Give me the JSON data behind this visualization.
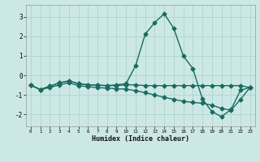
{
  "title": "",
  "xlabel": "Humidex (Indice chaleur)",
  "ylabel": "",
  "background_color": "#cce8e5",
  "grid_color": "#aacfcc",
  "line_color": "#1a6b60",
  "x_ticks": [
    0,
    1,
    2,
    3,
    4,
    5,
    6,
    7,
    8,
    9,
    10,
    11,
    12,
    13,
    14,
    15,
    16,
    17,
    18,
    19,
    20,
    21,
    22,
    23
  ],
  "xlim": [
    -0.5,
    23.5
  ],
  "ylim": [
    -2.6,
    3.6
  ],
  "yticks": [
    -2,
    -1,
    0,
    1,
    2,
    3
  ],
  "series": [
    {
      "x": [
        0,
        1,
        2,
        3,
        4,
        5,
        6,
        7,
        8,
        9,
        10,
        11,
        12,
        13,
        14,
        15,
        16,
        17,
        18,
        19,
        20,
        21,
        22,
        23
      ],
      "y": [
        -0.5,
        -0.72,
        -0.55,
        -0.38,
        -0.28,
        -0.42,
        -0.48,
        -0.5,
        -0.52,
        -0.48,
        -0.42,
        0.5,
        2.1,
        2.7,
        3.15,
        2.4,
        1.0,
        0.35,
        -1.2,
        -1.85,
        -2.1,
        -1.75,
        -0.75,
        -0.62
      ],
      "marker": "D",
      "marker_size": 2.5,
      "linewidth": 1.0
    },
    {
      "x": [
        0,
        1,
        2,
        3,
        4,
        5,
        6,
        7,
        8,
        9,
        10,
        11,
        12,
        13,
        14,
        15,
        16,
        17,
        18,
        19,
        20,
        21,
        22,
        23
      ],
      "y": [
        -0.5,
        -0.72,
        -0.55,
        -0.38,
        -0.28,
        -0.42,
        -0.48,
        -0.5,
        -0.52,
        -0.52,
        -0.48,
        -0.48,
        -0.52,
        -0.52,
        -0.52,
        -0.52,
        -0.52,
        -0.52,
        -0.52,
        -0.52,
        -0.52,
        -0.52,
        -0.52,
        -0.62
      ],
      "marker": "D",
      "marker_size": 2.5,
      "linewidth": 1.0
    },
    {
      "x": [
        0,
        1,
        2,
        3,
        4,
        5,
        6,
        7,
        8,
        9,
        10,
        11,
        12,
        13,
        14,
        15,
        16,
        17,
        18,
        19,
        20,
        21,
        22,
        23
      ],
      "y": [
        -0.5,
        -0.72,
        -0.62,
        -0.48,
        -0.38,
        -0.52,
        -0.58,
        -0.62,
        -0.65,
        -0.68,
        -0.7,
        -0.78,
        -0.88,
        -1.0,
        -1.12,
        -1.22,
        -1.32,
        -1.38,
        -1.42,
        -1.52,
        -1.68,
        -1.78,
        -1.22,
        -0.62
      ],
      "marker": "D",
      "marker_size": 2.5,
      "linewidth": 1.0
    }
  ]
}
